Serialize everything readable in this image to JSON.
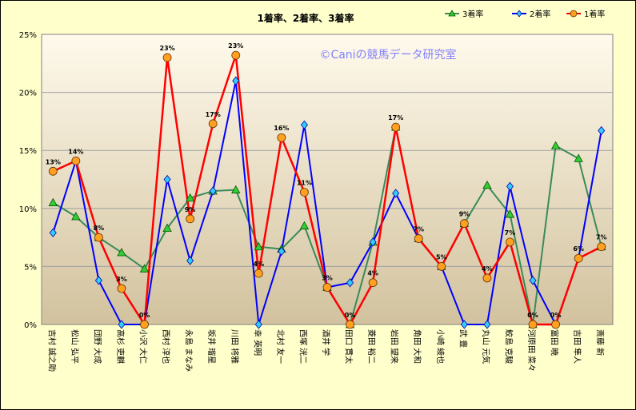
{
  "chart_data": {
    "type": "line",
    "title": "1着率、2着率、3着率",
    "watermark": "©Caniの競馬データ研究室",
    "ylim": [
      0,
      25
    ],
    "yticks": [
      "0%",
      "5%",
      "10%",
      "15%",
      "20%",
      "25%"
    ],
    "grid": true,
    "legend_position": "top-right",
    "categories": [
      "吉村 誠之助",
      "松山 弘平",
      "団野 大成",
      "高杉 吏麒",
      "小沢 大仁",
      "西村 淳也",
      "永島 まなみ",
      "坂井 瑠星",
      "川田 将雅",
      "幸 英明",
      "北村 友一",
      "西塚 洸二",
      "酒井 学",
      "田口 貫太",
      "菱田 裕二",
      "岩田 望来",
      "角田 大和",
      "小崎 綾也",
      "武 豊",
      "丸山 元気",
      "鮫島 克駿",
      "河原田 菜々",
      "富田 暁",
      "吉田 隼人",
      "斎藤 新"
    ],
    "series": [
      {
        "name": "3着率",
        "color": "#3a8a5a",
        "marker": "triangle",
        "values": [
          10.5,
          9.3,
          7.5,
          6.2,
          4.8,
          8.3,
          10.9,
          11.5,
          11.6,
          6.7,
          6.5,
          8.5,
          3.2,
          0,
          7.1,
          17.0,
          7.4,
          5.0,
          8.7,
          12.0,
          9.5,
          0,
          15.4,
          14.3,
          6.7
        ]
      },
      {
        "name": "2着率",
        "color": "#0000ff",
        "marker": "diamond",
        "values": [
          7.9,
          14.1,
          3.8,
          0,
          0,
          12.5,
          5.5,
          11.5,
          21.0,
          0,
          6.3,
          17.2,
          3.2,
          3.6,
          7.1,
          11.3,
          7.4,
          5.0,
          0,
          0,
          11.9,
          3.8,
          0,
          5.7,
          16.7
        ]
      },
      {
        "name": "1着率",
        "color": "#ff0000",
        "marker": "circle",
        "values": [
          13.2,
          14.1,
          7.5,
          3.1,
          0,
          23.0,
          9.1,
          17.3,
          23.2,
          4.4,
          16.1,
          11.4,
          3.2,
          0,
          3.6,
          17.0,
          7.4,
          5.0,
          8.7,
          4.0,
          7.1,
          0,
          0,
          5.7,
          6.7
        ]
      }
    ],
    "data_labels": [
      "13%",
      "14%",
      "8%",
      "3%",
      "0%",
      "23%",
      "9%",
      "17%",
      "23%",
      "4%",
      "16%",
      "11%",
      "3%",
      "0%",
      "4%",
      "17%",
      "7%",
      "5%",
      "9%",
      "4%",
      "7%",
      "0%",
      "0%",
      "6%",
      "7%"
    ]
  }
}
